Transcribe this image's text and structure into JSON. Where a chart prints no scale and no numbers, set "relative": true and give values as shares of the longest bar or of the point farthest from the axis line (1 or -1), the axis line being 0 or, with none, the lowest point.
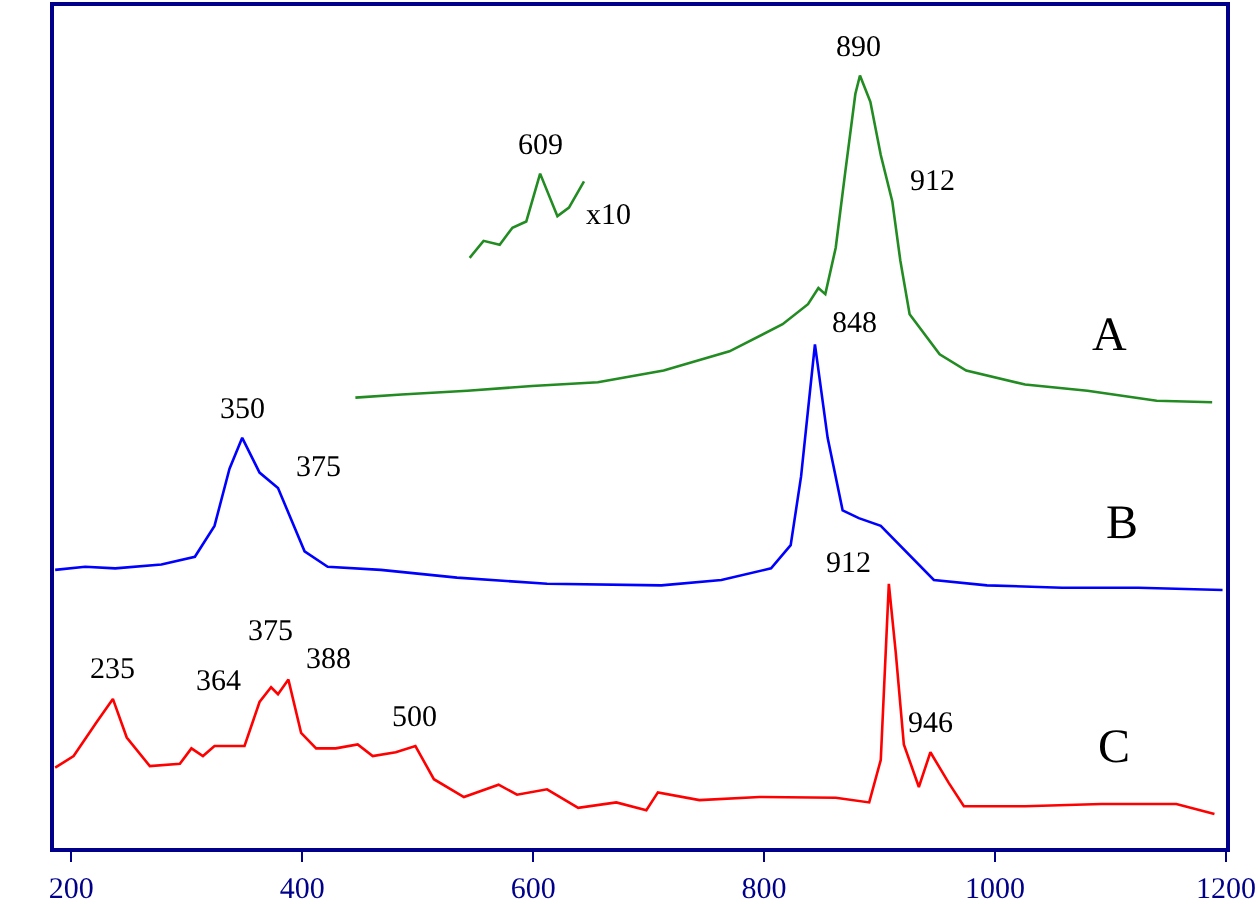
{
  "chart_data": {
    "type": "line",
    "relative": true,
    "xlim": [
      185,
      1200
    ],
    "xticks": [
      200,
      400,
      600,
      800,
      1000,
      1200
    ],
    "grid": false,
    "legend": false,
    "series": [
      {
        "name": "A",
        "color": "#228b22",
        "x": [
          446,
          486,
          543,
          599,
          656,
          713,
          770,
          816,
          838,
          847,
          853,
          862,
          870,
          879,
          883,
          892,
          901,
          911,
          918,
          926,
          952,
          975,
          1026,
          1080,
          1140,
          1188
        ],
        "values": [
          0.583,
          0.587,
          0.592,
          0.598,
          0.603,
          0.618,
          0.643,
          0.678,
          0.704,
          0.725,
          0.717,
          0.777,
          0.872,
          0.976,
          1.0,
          0.966,
          0.897,
          0.837,
          0.76,
          0.691,
          0.639,
          0.618,
          0.6,
          0.592,
          0.579,
          0.577
        ]
      },
      {
        "color": "#228b22",
        "x": [
          545,
          557,
          571,
          582,
          594,
          606,
          621,
          631,
          644
        ],
        "values": [
          0.764,
          0.786,
          0.781,
          0.803,
          0.811,
          0.873,
          0.818,
          0.829,
          0.863
        ]
      },
      {
        "name": "B",
        "color": "#0000ff",
        "x": [
          186,
          212,
          238,
          278,
          307,
          324,
          337,
          348,
          363,
          379,
          402,
          422,
          468,
          534,
          612,
          711,
          763,
          806,
          823,
          832,
          839,
          844,
          855,
          868,
          882,
          901,
          947,
          993,
          1058,
          1124,
          1197
        ],
        "values": [
          0.36,
          0.364,
          0.362,
          0.367,
          0.377,
          0.417,
          0.491,
          0.531,
          0.486,
          0.466,
          0.384,
          0.364,
          0.36,
          0.35,
          0.342,
          0.34,
          0.347,
          0.362,
          0.392,
          0.481,
          0.581,
          0.652,
          0.531,
          0.437,
          0.427,
          0.417,
          0.347,
          0.34,
          0.337,
          0.337,
          0.334
        ]
      },
      {
        "name": "C",
        "color": "#ff0000",
        "x": [
          186,
          202,
          222,
          236,
          248,
          268,
          294,
          304,
          314,
          324,
          350,
          363,
          373,
          379,
          388,
          399,
          412,
          429,
          448,
          461,
          481,
          498,
          514,
          540,
          570,
          586,
          612,
          639,
          672,
          698,
          708,
          744,
          796,
          862,
          891,
          901,
          908,
          914,
          921,
          934,
          944,
          960,
          973,
          1026,
          1092,
          1157,
          1190
        ],
        "values": [
          0.104,
          0.119,
          0.163,
          0.193,
          0.143,
          0.106,
          0.109,
          0.129,
          0.119,
          0.132,
          0.132,
          0.189,
          0.208,
          0.199,
          0.218,
          0.149,
          0.129,
          0.129,
          0.134,
          0.119,
          0.124,
          0.132,
          0.089,
          0.066,
          0.082,
          0.069,
          0.076,
          0.052,
          0.059,
          0.049,
          0.072,
          0.062,
          0.066,
          0.065,
          0.059,
          0.114,
          0.342,
          0.253,
          0.134,
          0.079,
          0.124,
          0.084,
          0.054,
          0.054,
          0.057,
          0.057,
          0.044
        ]
      }
    ],
    "annotations": [
      {
        "text": "609",
        "x": 606,
        "y": 0.873
      },
      {
        "text": "890",
        "x": 883,
        "y": 1.0
      },
      {
        "text": "912",
        "x": 911,
        "y": 0.837
      },
      {
        "text": "x10",
        "x": 621,
        "y": 0.818
      },
      {
        "text": "350",
        "x": 348,
        "y": 0.531
      },
      {
        "text": "375",
        "x": 379,
        "y": 0.466
      },
      {
        "text": "848",
        "x": 844,
        "y": 0.652
      },
      {
        "text": "235",
        "x": 236,
        "y": 0.193
      },
      {
        "text": "364",
        "x": 363,
        "y": 0.189
      },
      {
        "text": "375",
        "x": 373,
        "y": 0.208
      },
      {
        "text": "388",
        "x": 388,
        "y": 0.218
      },
      {
        "text": "500",
        "x": 498,
        "y": 0.132
      },
      {
        "text": "912",
        "x": 908,
        "y": 0.342
      },
      {
        "text": "946",
        "x": 944,
        "y": 0.124
      }
    ]
  }
}
